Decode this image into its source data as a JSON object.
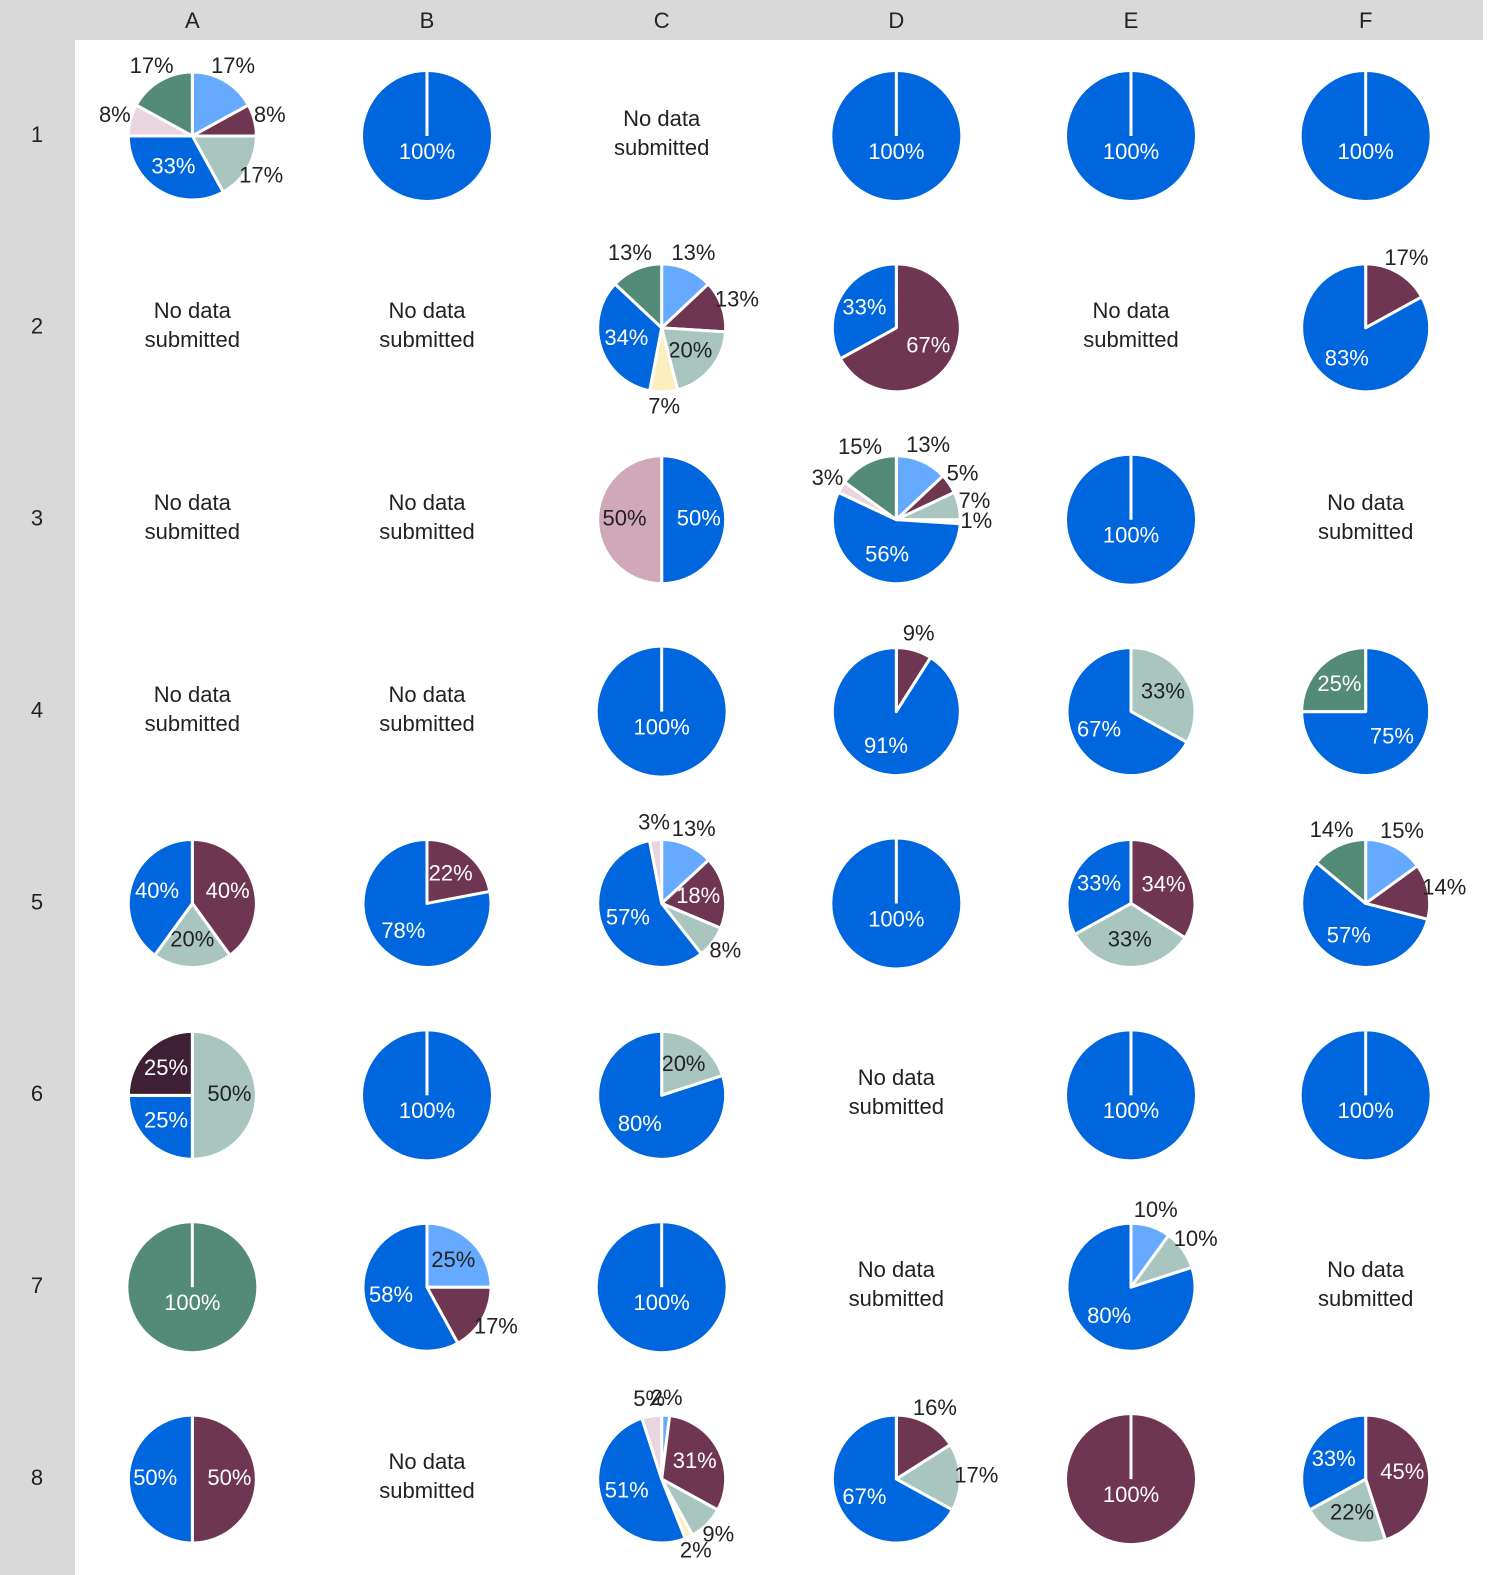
{
  "columns": [
    "A",
    "B",
    "C",
    "D",
    "E",
    "F"
  ],
  "rows": [
    "1",
    "2",
    "3",
    "4",
    "5",
    "6",
    "7",
    "8"
  ],
  "chart_data": [
    {
      "type": "pie",
      "values": [
        17,
        8,
        17,
        33,
        8,
        17
      ],
      "value_labels": [
        "17%",
        "8%",
        "17%",
        "33%",
        "8%",
        "17%"
      ],
      "colors": [
        "#66aaff",
        "#6e3651",
        "#a8c6bf",
        "#0066dd",
        "#e8d5e0",
        "#548a78"
      ]
    },
    {
      "type": "pie",
      "values": [
        100
      ],
      "value_labels": [
        "100%"
      ],
      "colors": [
        "#0066dd"
      ]
    },
    {
      "type": "note",
      "text": "No data submitted"
    },
    {
      "type": "pie",
      "values": [
        100
      ],
      "value_labels": [
        "100%"
      ],
      "colors": [
        "#0066dd"
      ]
    },
    {
      "type": "pie",
      "values": [
        100
      ],
      "value_labels": [
        "100%"
      ],
      "colors": [
        "#0066dd"
      ]
    },
    {
      "type": "pie",
      "values": [
        100
      ],
      "value_labels": [
        "100%"
      ],
      "colors": [
        "#0066dd"
      ]
    },
    {
      "type": "note",
      "text": "No data submitted"
    },
    {
      "type": "note",
      "text": "No data submitted"
    },
    {
      "type": "pie",
      "values": [
        13,
        13,
        20,
        7,
        34,
        13
      ],
      "value_labels": [
        "13%",
        "13%",
        "20%",
        "7%",
        "34%",
        "13%"
      ],
      "colors": [
        "#66aaff",
        "#6e3651",
        "#a8c6bf",
        "#fdeec0",
        "#0066dd",
        "#548a78"
      ]
    },
    {
      "type": "pie",
      "values": [
        67,
        33
      ],
      "value_labels": [
        "67%",
        "33%"
      ],
      "colors": [
        "#6e3651",
        "#0066dd"
      ]
    },
    {
      "type": "note",
      "text": "No data submitted"
    },
    {
      "type": "pie",
      "values": [
        17,
        83
      ],
      "value_labels": [
        "17%",
        "83%"
      ],
      "colors": [
        "#6e3651",
        "#0066dd"
      ]
    },
    {
      "type": "note",
      "text": "No data submitted"
    },
    {
      "type": "note",
      "text": "No data submitted"
    },
    {
      "type": "pie",
      "values": [
        50,
        50
      ],
      "value_labels": [
        "50%",
        "50%"
      ],
      "colors": [
        "#0066dd",
        "#d1a7ba"
      ]
    },
    {
      "type": "pie",
      "values": [
        13,
        5,
        7,
        1,
        56,
        3,
        15
      ],
      "value_labels": [
        "13%",
        "5%",
        "7%",
        "1%",
        "56%",
        "3%",
        "15%"
      ],
      "colors": [
        "#66aaff",
        "#6e3651",
        "#a8c6bf",
        "#fdeec0",
        "#0066dd",
        "#e8d5e0",
        "#548a78"
      ]
    },
    {
      "type": "pie",
      "values": [
        100
      ],
      "value_labels": [
        "100%"
      ],
      "colors": [
        "#0066dd"
      ]
    },
    {
      "type": "note",
      "text": "No data submitted"
    },
    {
      "type": "note",
      "text": "No data submitted"
    },
    {
      "type": "note",
      "text": "No data submitted"
    },
    {
      "type": "pie",
      "values": [
        100
      ],
      "value_labels": [
        "100%"
      ],
      "colors": [
        "#0066dd"
      ]
    },
    {
      "type": "pie",
      "values": [
        9,
        91
      ],
      "value_labels": [
        "9%",
        "91%"
      ],
      "colors": [
        "#6e3651",
        "#0066dd"
      ]
    },
    {
      "type": "pie",
      "values": [
        33,
        67
      ],
      "value_labels": [
        "33%",
        "67%"
      ],
      "colors": [
        "#a8c6bf",
        "#0066dd"
      ]
    },
    {
      "type": "pie",
      "values": [
        75,
        25
      ],
      "value_labels": [
        "75%",
        "25%"
      ],
      "colors": [
        "#0066dd",
        "#548a78"
      ]
    },
    {
      "type": "pie",
      "values": [
        40,
        20,
        40
      ],
      "value_labels": [
        "40%",
        "20%",
        "40%"
      ],
      "colors": [
        "#6e3651",
        "#a8c6bf",
        "#0066dd"
      ]
    },
    {
      "type": "pie",
      "values": [
        22,
        78
      ],
      "value_labels": [
        "22%",
        "78%"
      ],
      "colors": [
        "#6e3651",
        "#0066dd"
      ]
    },
    {
      "type": "pie",
      "values": [
        13,
        18,
        8,
        57,
        3
      ],
      "value_labels": [
        "13%",
        "18%",
        "8%",
        "57%",
        "3%"
      ],
      "colors": [
        "#66aaff",
        "#6e3651",
        "#a8c6bf",
        "#0066dd",
        "#e8d5e0"
      ]
    },
    {
      "type": "pie",
      "values": [
        100
      ],
      "value_labels": [
        "100%"
      ],
      "colors": [
        "#0066dd"
      ]
    },
    {
      "type": "pie",
      "values": [
        34,
        33,
        33
      ],
      "value_labels": [
        "34%",
        "33%",
        "33%"
      ],
      "colors": [
        "#6e3651",
        "#a8c6bf",
        "#0066dd"
      ]
    },
    {
      "type": "pie",
      "values": [
        15,
        14,
        57,
        14
      ],
      "value_labels": [
        "15%",
        "14%",
        "57%",
        "14%"
      ],
      "colors": [
        "#66aaff",
        "#6e3651",
        "#0066dd",
        "#548a78"
      ]
    },
    {
      "type": "pie",
      "values": [
        50,
        25,
        25
      ],
      "value_labels": [
        "50%",
        "25%",
        "25%"
      ],
      "colors": [
        "#a8c6bf",
        "#0066dd",
        "#3f1f33"
      ]
    },
    {
      "type": "pie",
      "values": [
        100
      ],
      "value_labels": [
        "100%"
      ],
      "colors": [
        "#0066dd"
      ]
    },
    {
      "type": "pie",
      "values": [
        20,
        80
      ],
      "value_labels": [
        "20%",
        "80%"
      ],
      "colors": [
        "#a8c6bf",
        "#0066dd"
      ]
    },
    {
      "type": "note",
      "text": "No data submitted"
    },
    {
      "type": "pie",
      "values": [
        100
      ],
      "value_labels": [
        "100%"
      ],
      "colors": [
        "#0066dd"
      ]
    },
    {
      "type": "pie",
      "values": [
        100
      ],
      "value_labels": [
        "100%"
      ],
      "colors": [
        "#0066dd"
      ]
    },
    {
      "type": "pie",
      "values": [
        100
      ],
      "value_labels": [
        "100%"
      ],
      "colors": [
        "#548a78"
      ]
    },
    {
      "type": "pie",
      "values": [
        25,
        17,
        58
      ],
      "value_labels": [
        "25%",
        "17%",
        "58%"
      ],
      "colors": [
        "#66aaff",
        "#6e3651",
        "#0066dd"
      ]
    },
    {
      "type": "pie",
      "values": [
        100
      ],
      "value_labels": [
        "100%"
      ],
      "colors": [
        "#0066dd"
      ]
    },
    {
      "type": "note",
      "text": "No data submitted"
    },
    {
      "type": "pie",
      "values": [
        10,
        10,
        80
      ],
      "value_labels": [
        "10%",
        "10%",
        "80%"
      ],
      "colors": [
        "#66aaff",
        "#a8c6bf",
        "#0066dd"
      ]
    },
    {
      "type": "note",
      "text": "No data submitted"
    },
    {
      "type": "pie",
      "values": [
        50,
        50
      ],
      "value_labels": [
        "50%",
        "50%"
      ],
      "colors": [
        "#6e3651",
        "#0066dd"
      ]
    },
    {
      "type": "note",
      "text": "No data submitted"
    },
    {
      "type": "pie",
      "values": [
        2,
        31,
        9,
        2,
        51,
        5
      ],
      "value_labels": [
        "2%",
        "31%",
        "9%",
        "2%",
        "51%",
        "5%"
      ],
      "colors": [
        "#66aaff",
        "#6e3651",
        "#a8c6bf",
        "#fdeec0",
        "#0066dd",
        "#e8d5e0"
      ]
    },
    {
      "type": "pie",
      "values": [
        16,
        17,
        67
      ],
      "value_labels": [
        "16%",
        "17%",
        "67%"
      ],
      "colors": [
        "#6e3651",
        "#a8c6bf",
        "#0066dd"
      ]
    },
    {
      "type": "pie",
      "values": [
        100
      ],
      "value_labels": [
        "100%"
      ],
      "colors": [
        "#6e3651"
      ]
    },
    {
      "type": "pie",
      "values": [
        45,
        22,
        33
      ],
      "value_labels": [
        "45%",
        "22%",
        "33%"
      ],
      "colors": [
        "#6e3651",
        "#a8c6bf",
        "#0066dd"
      ]
    }
  ]
}
